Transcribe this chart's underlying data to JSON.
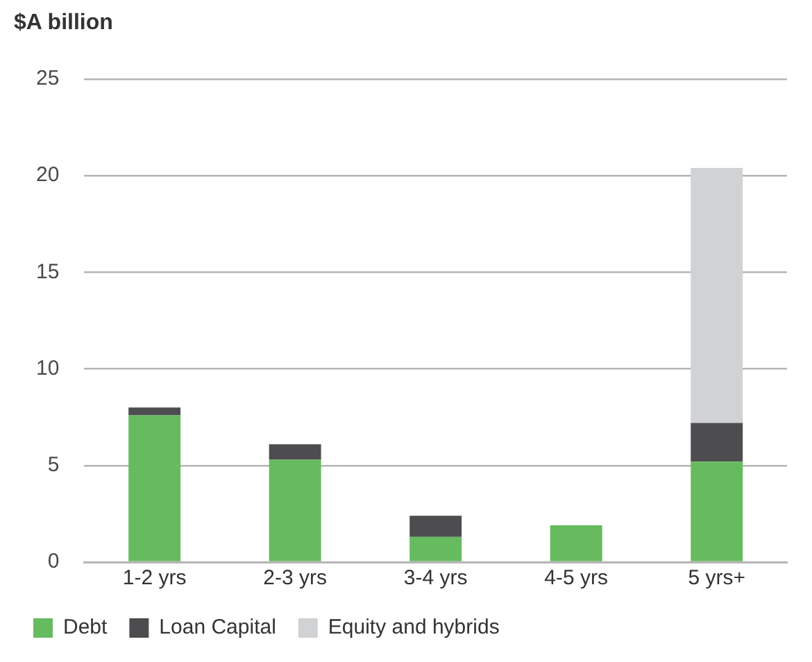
{
  "chart_data": {
    "type": "bar",
    "ylabel": "$A billion",
    "categories": [
      "1-2 yrs",
      "2-3 yrs",
      "3-4 yrs",
      "4-5 yrs",
      "5 yrs+"
    ],
    "stacked": true,
    "series": [
      {
        "name": "Debt",
        "color": "#66bb5f",
        "values": [
          7.6,
          5.3,
          1.3,
          1.9,
          5.2
        ]
      },
      {
        "name": "Loan Capital",
        "color": "#4d4d4f",
        "values": [
          0.4,
          0.8,
          1.1,
          null,
          2.0
        ]
      },
      {
        "name": "Equity and hybrids",
        "color": "#d1d2d4",
        "values": [
          null,
          null,
          null,
          null,
          13.2
        ]
      }
    ],
    "ylim": [
      0,
      25
    ],
    "yticks": [
      0,
      5,
      10,
      15,
      20,
      25
    ],
    "grid": "y",
    "legend": "bottom left"
  }
}
